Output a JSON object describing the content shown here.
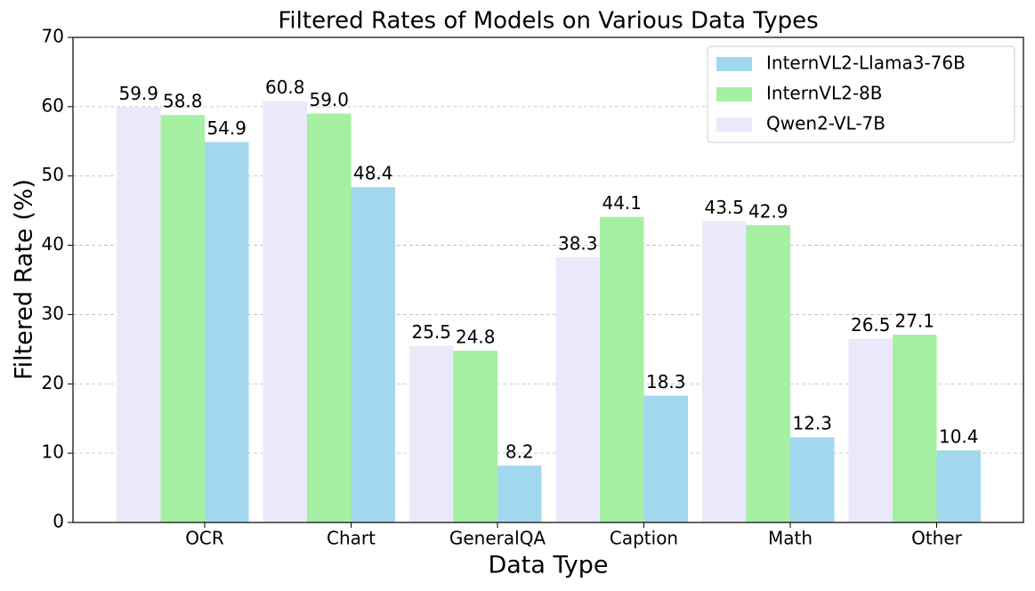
{
  "chart_data": {
    "type": "bar",
    "title": "Filtered Rates of Models on Various Data Types",
    "x_label": "Data Type",
    "y_label": "Filtered Rate (%)",
    "categories": [
      "OCR",
      "Chart",
      "GeneralQA",
      "Caption",
      "Math",
      "Other"
    ],
    "series": [
      {
        "name": "InternVL2-Llama3-76B",
        "color": "#a2d8ee",
        "values": [
          54.9,
          48.4,
          8.2,
          18.3,
          12.3,
          10.4
        ],
        "value_labels": [
          "54.9",
          "48.4",
          "8.2",
          "18.3",
          "12.3",
          "10.4"
        ]
      },
      {
        "name": "InternVL2-8B",
        "color": "#a5f0a3",
        "values": [
          58.8,
          59.0,
          24.8,
          44.1,
          42.9,
          27.1
        ],
        "value_labels": [
          "58.8",
          "59.0",
          "24.8",
          "44.1",
          "42.9",
          "27.1"
        ]
      },
      {
        "name": "Qwen2-VL-7B",
        "color": "#eae9fb",
        "values": [
          59.9,
          60.8,
          25.5,
          38.3,
          43.5,
          26.5
        ],
        "value_labels": [
          "59.9",
          "60.8",
          "25.5",
          "38.3",
          "43.5",
          "26.5"
        ]
      }
    ],
    "ylim": [
      0,
      70
    ],
    "yticks": [
      0,
      10,
      20,
      30,
      40,
      50,
      60,
      70
    ],
    "grid": true,
    "legend": "upper right"
  }
}
